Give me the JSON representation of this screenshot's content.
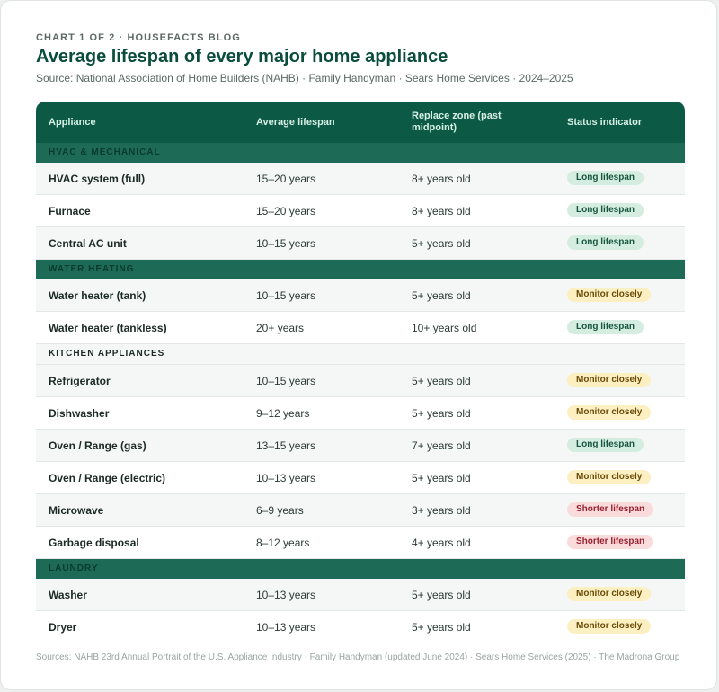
{
  "header": {
    "eyebrow": "CHART 1 OF 2 · HOUSEFACTS BLOG",
    "title": "Average lifespan of every major home appliance",
    "subtitle": "Source: National Association of Home Builders (NAHB) · Family Handyman · Sears Home Services · 2024–2025"
  },
  "table": {
    "columns": [
      "Appliance",
      "Average lifespan",
      "Replace zone (past midpoint)",
      "Status indicator"
    ],
    "groups": [
      {
        "label": "HVAC & MECHANICAL",
        "style": "dark",
        "rows": [
          {
            "appliance": "HVAC system (full)",
            "lifespan": "15–20 years",
            "replace": "8+ years old",
            "status": "Long lifespan",
            "tone": "long"
          },
          {
            "appliance": "Furnace",
            "lifespan": "15–20 years",
            "replace": "8+ years old",
            "status": "Long lifespan",
            "tone": "long"
          },
          {
            "appliance": "Central AC unit",
            "lifespan": "10–15 years",
            "replace": "5+ years old",
            "status": "Long lifespan",
            "tone": "long"
          }
        ]
      },
      {
        "label": "WATER HEATING",
        "style": "dark",
        "rows": [
          {
            "appliance": "Water heater (tank)",
            "lifespan": "10–15 years",
            "replace": "5+ years old",
            "status": "Monitor closely",
            "tone": "monitor"
          },
          {
            "appliance": "Water heater (tankless)",
            "lifespan": "20+ years",
            "replace": "10+ years old",
            "status": "Long lifespan",
            "tone": "long"
          }
        ]
      },
      {
        "label": "KITCHEN APPLIANCES",
        "style": "light",
        "rows": [
          {
            "appliance": "Refrigerator",
            "lifespan": "10–15 years",
            "replace": "5+ years old",
            "status": "Monitor closely",
            "tone": "monitor"
          },
          {
            "appliance": "Dishwasher",
            "lifespan": "9–12 years",
            "replace": "5+ years old",
            "status": "Monitor closely",
            "tone": "monitor"
          },
          {
            "appliance": "Oven / Range (gas)",
            "lifespan": "13–15 years",
            "replace": "7+ years old",
            "status": "Long lifespan",
            "tone": "long"
          },
          {
            "appliance": "Oven / Range (electric)",
            "lifespan": "10–13 years",
            "replace": "5+ years old",
            "status": "Monitor closely",
            "tone": "monitor"
          },
          {
            "appliance": "Microwave",
            "lifespan": "6–9 years",
            "replace": "3+ years old",
            "status": "Shorter lifespan",
            "tone": "short"
          },
          {
            "appliance": "Garbage disposal",
            "lifespan": "8–12 years",
            "replace": "4+ years old",
            "status": "Shorter lifespan",
            "tone": "short"
          }
        ]
      },
      {
        "label": "LAUNDRY",
        "style": "dark",
        "rows": [
          {
            "appliance": "Washer",
            "lifespan": "10–13 years",
            "replace": "5+ years old",
            "status": "Monitor closely",
            "tone": "monitor"
          },
          {
            "appliance": "Dryer",
            "lifespan": "10–13 years",
            "replace": "5+ years old",
            "status": "Monitor closely",
            "tone": "monitor"
          }
        ]
      }
    ]
  },
  "footer": {
    "sources": "Sources: NAHB 23rd Annual Portrait of the U.S. Appliance Industry · Family Handyman (updated June 2024) · Sears Home Services (2025) · The Madrona Group"
  }
}
